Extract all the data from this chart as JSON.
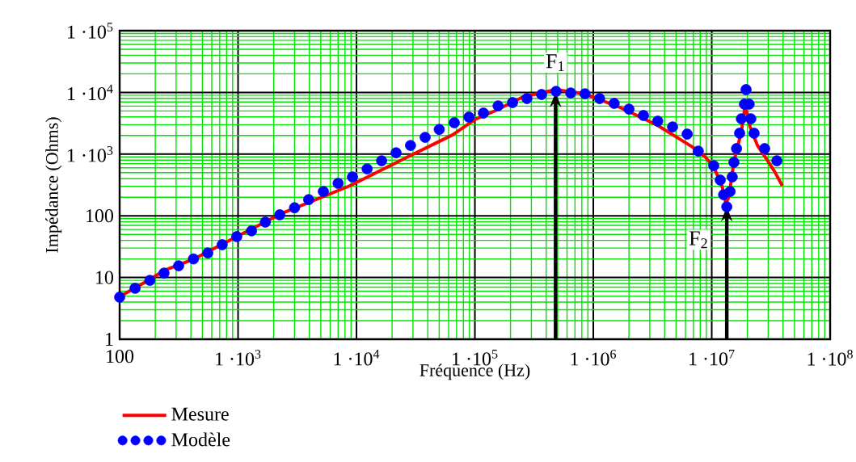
{
  "chart_data": {
    "type": "line",
    "xlabel": "Fréquence (Hz)",
    "ylabel": "Impédance (Ohms)",
    "log": "xy",
    "grid": true,
    "legend": "bottom",
    "xlim": [
      100,
      100000000
    ],
    "ylim": [
      1,
      100000
    ],
    "xticks": [
      100,
      {
        "value": 200,
        "label": null
      },
      {
        "value": 300,
        "label": null
      },
      {
        "value": 400,
        "label": null
      },
      {
        "value": 500,
        "label": null
      },
      {
        "value": 600,
        "label": null
      },
      {
        "value": 700,
        "label": null
      },
      {
        "value": 800,
        "label": null
      },
      {
        "value": 900,
        "label": null
      },
      {
        "value": 1000,
        "label": "1 ·10$^{3}$"
      },
      {
        "value": 2000,
        "label": null
      },
      {
        "value": 3000,
        "label": null
      },
      {
        "value": 4000,
        "label": null
      },
      {
        "value": 5000,
        "label": null
      },
      {
        "value": 6000,
        "label": null
      },
      {
        "value": 7000,
        "label": null
      },
      {
        "value": 8000,
        "label": null
      },
      {
        "value": 9000,
        "label": null
      },
      {
        "value": 10000,
        "label": "1 ·10$^{4}$"
      },
      {
        "value": 20000,
        "label": null
      },
      {
        "value": 30000,
        "label": null
      },
      {
        "value": 40000,
        "label": null
      },
      {
        "value": 50000,
        "label": null
      },
      {
        "value": 60000,
        "label": null
      },
      {
        "value": 70000,
        "label": null
      },
      {
        "value": 80000,
        "label": null
      },
      {
        "value": 90000,
        "label": null
      },
      {
        "value": 100000,
        "label": "1 ·10$^{5}$"
      },
      {
        "value": 200000,
        "label": null
      },
      {
        "value": 300000,
        "label": null
      },
      {
        "value": 400000,
        "label": null
      },
      {
        "value": 500000,
        "label": null
      },
      {
        "value": 600000,
        "label": null
      },
      {
        "value": 700000,
        "label": null
      },
      {
        "value": 800000,
        "label": null
      },
      {
        "value": 900000,
        "label": null
      },
      {
        "value": 1000000,
        "label": "1 ·10$^{6}$"
      },
      {
        "value": 2000000,
        "label": null
      },
      {
        "value": 3000000,
        "label": null
      },
      {
        "value": 4000000,
        "label": null
      },
      {
        "value": 5000000,
        "label": null
      },
      {
        "value": 6000000,
        "label": null
      },
      {
        "value": 7000000,
        "label": null
      },
      {
        "value": 8000000,
        "label": null
      },
      {
        "value": 9000000,
        "label": null
      },
      {
        "value": 10000000,
        "label": "1 ·10$^{7}$"
      },
      {
        "value": 20000000,
        "label": null
      },
      {
        "value": 30000000,
        "label": null
      },
      {
        "value": 40000000,
        "label": null
      },
      {
        "value": 50000000,
        "label": null
      },
      {
        "value": 60000000,
        "label": null
      },
      {
        "value": 70000000,
        "label": null
      },
      {
        "value": 80000000,
        "label": null
      },
      {
        "value": 90000000,
        "label": null
      },
      {
        "value": 100000000,
        "label": "1 ·10$^{8}$"
      }
    ],
    "yticks": [
      1,
      {
        "value": 2,
        "label": null
      },
      {
        "value": 3,
        "label": null
      },
      {
        "value": 4,
        "label": null
      },
      {
        "value": 5,
        "label": null
      },
      {
        "value": 6,
        "label": null
      },
      {
        "value": 7,
        "label": null
      },
      {
        "value": 8,
        "label": null
      },
      {
        "value": 9,
        "label": null
      },
      10,
      {
        "value": 20,
        "label": null
      },
      {
        "value": 30,
        "label": null
      },
      {
        "value": 40,
        "label": null
      },
      {
        "value": 50,
        "label": null
      },
      {
        "value": 60,
        "label": null
      },
      {
        "value": 70,
        "label": null
      },
      {
        "value": 80,
        "label": null
      },
      {
        "value": 90,
        "label": null
      },
      100,
      {
        "value": 200,
        "label": null
      },
      {
        "value": 300,
        "label": null
      },
      {
        "value": 400,
        "label": null
      },
      {
        "value": 500,
        "label": null
      },
      {
        "value": 600,
        "label": null
      },
      {
        "value": 700,
        "label": null
      },
      {
        "value": 800,
        "label": null
      },
      {
        "value": 900,
        "label": null
      },
      {
        "value": 1000,
        "label": "1 ·10$^{3}$"
      },
      {
        "value": 2000,
        "label": null
      },
      {
        "value": 3000,
        "label": null
      },
      {
        "value": 4000,
        "label": null
      },
      {
        "value": 5000,
        "label": null
      },
      {
        "value": 6000,
        "label": null
      },
      {
        "value": 7000,
        "label": null
      },
      {
        "value": 8000,
        "label": null
      },
      {
        "value": 9000,
        "label": null
      },
      {
        "value": 10000,
        "label": "1 ·10$^{4}$"
      },
      {
        "value": 20000,
        "label": null
      },
      {
        "value": 30000,
        "label": null
      },
      {
        "value": 40000,
        "label": null
      },
      {
        "value": 50000,
        "label": null
      },
      {
        "value": 60000,
        "label": null
      },
      {
        "value": 70000,
        "label": null
      },
      {
        "value": 80000,
        "label": null
      },
      {
        "value": 90000,
        "label": null
      },
      {
        "value": 100000,
        "label": "1 ·10$^{5}$"
      }
    ],
    "annotations": [
      {
        "text": "F$_{1}$",
        "x": 480000,
        "y": 10000
      },
      {
        "text": "F$_{2}$",
        "x": 13400000,
        "y": 140
      }
    ],
    "series": [
      {
        "name": "Mesure",
        "color": "#ff0000",
        "x": [
          100,
          180,
          237,
          425,
          975,
          2280,
          8800,
          28200,
          64500,
          100000,
          149000,
          255000,
          479000,
          841000,
          1680000,
          3470000,
          6900000,
          8900000,
          10400000,
          12200000,
          13200000,
          14000000,
          15400000,
          17800000,
          19200000,
          21100000,
          24300000,
          28500000,
          33800000,
          39500000
        ],
        "values": [
          4.9,
          9.3,
          13,
          20,
          46,
          107,
          307,
          935,
          2040,
          3630,
          5060,
          8450,
          11100,
          9500,
          5710,
          2940,
          1300,
          880,
          615,
          307,
          158,
          207,
          760,
          2310,
          6250,
          2760,
          1390,
          880,
          530,
          307
        ]
      },
      {
        "name": "Modèle",
        "type": "scatter",
        "marker": "circle",
        "color": "#0000ff",
        "x": [
          100,
          135,
          180,
          237,
          315,
          420,
          555,
          735,
          975,
          1300,
          1700,
          2250,
          3000,
          3950,
          5250,
          7000,
          9250,
          12300,
          16300,
          21600,
          28600,
          38000,
          50000,
          67000,
          89000,
          118000,
          157000,
          208000,
          275000,
          366000,
          485000,
          645000,
          850000,
          1130000,
          1500000,
          2000000,
          2650000,
          3500000,
          4670000,
          6200000,
          7700000,
          10400000,
          11800000,
          12600000,
          13400000,
          14300000,
          14900000,
          15400000,
          16200000,
          17200000,
          17800000,
          18900000,
          19500000,
          20700000,
          21400000,
          22800000,
          28000000,
          35500000
        ],
        "values": [
          4.8,
          6.7,
          9,
          11.8,
          15.5,
          20,
          25,
          34,
          46,
          57,
          79,
          104,
          135,
          183,
          248,
          336,
          427,
          577,
          780,
          1050,
          1380,
          1870,
          2510,
          3230,
          3980,
          4620,
          6050,
          6840,
          7950,
          9250,
          10400,
          9800,
          9500,
          7950,
          6640,
          5370,
          4230,
          3420,
          2760,
          2110,
          1120,
          650,
          380,
          220,
          140,
          248,
          427,
          735,
          1230,
          2180,
          3740,
          6450,
          11100,
          6450,
          3740,
          2180,
          1230,
          780
        ]
      }
    ]
  }
}
